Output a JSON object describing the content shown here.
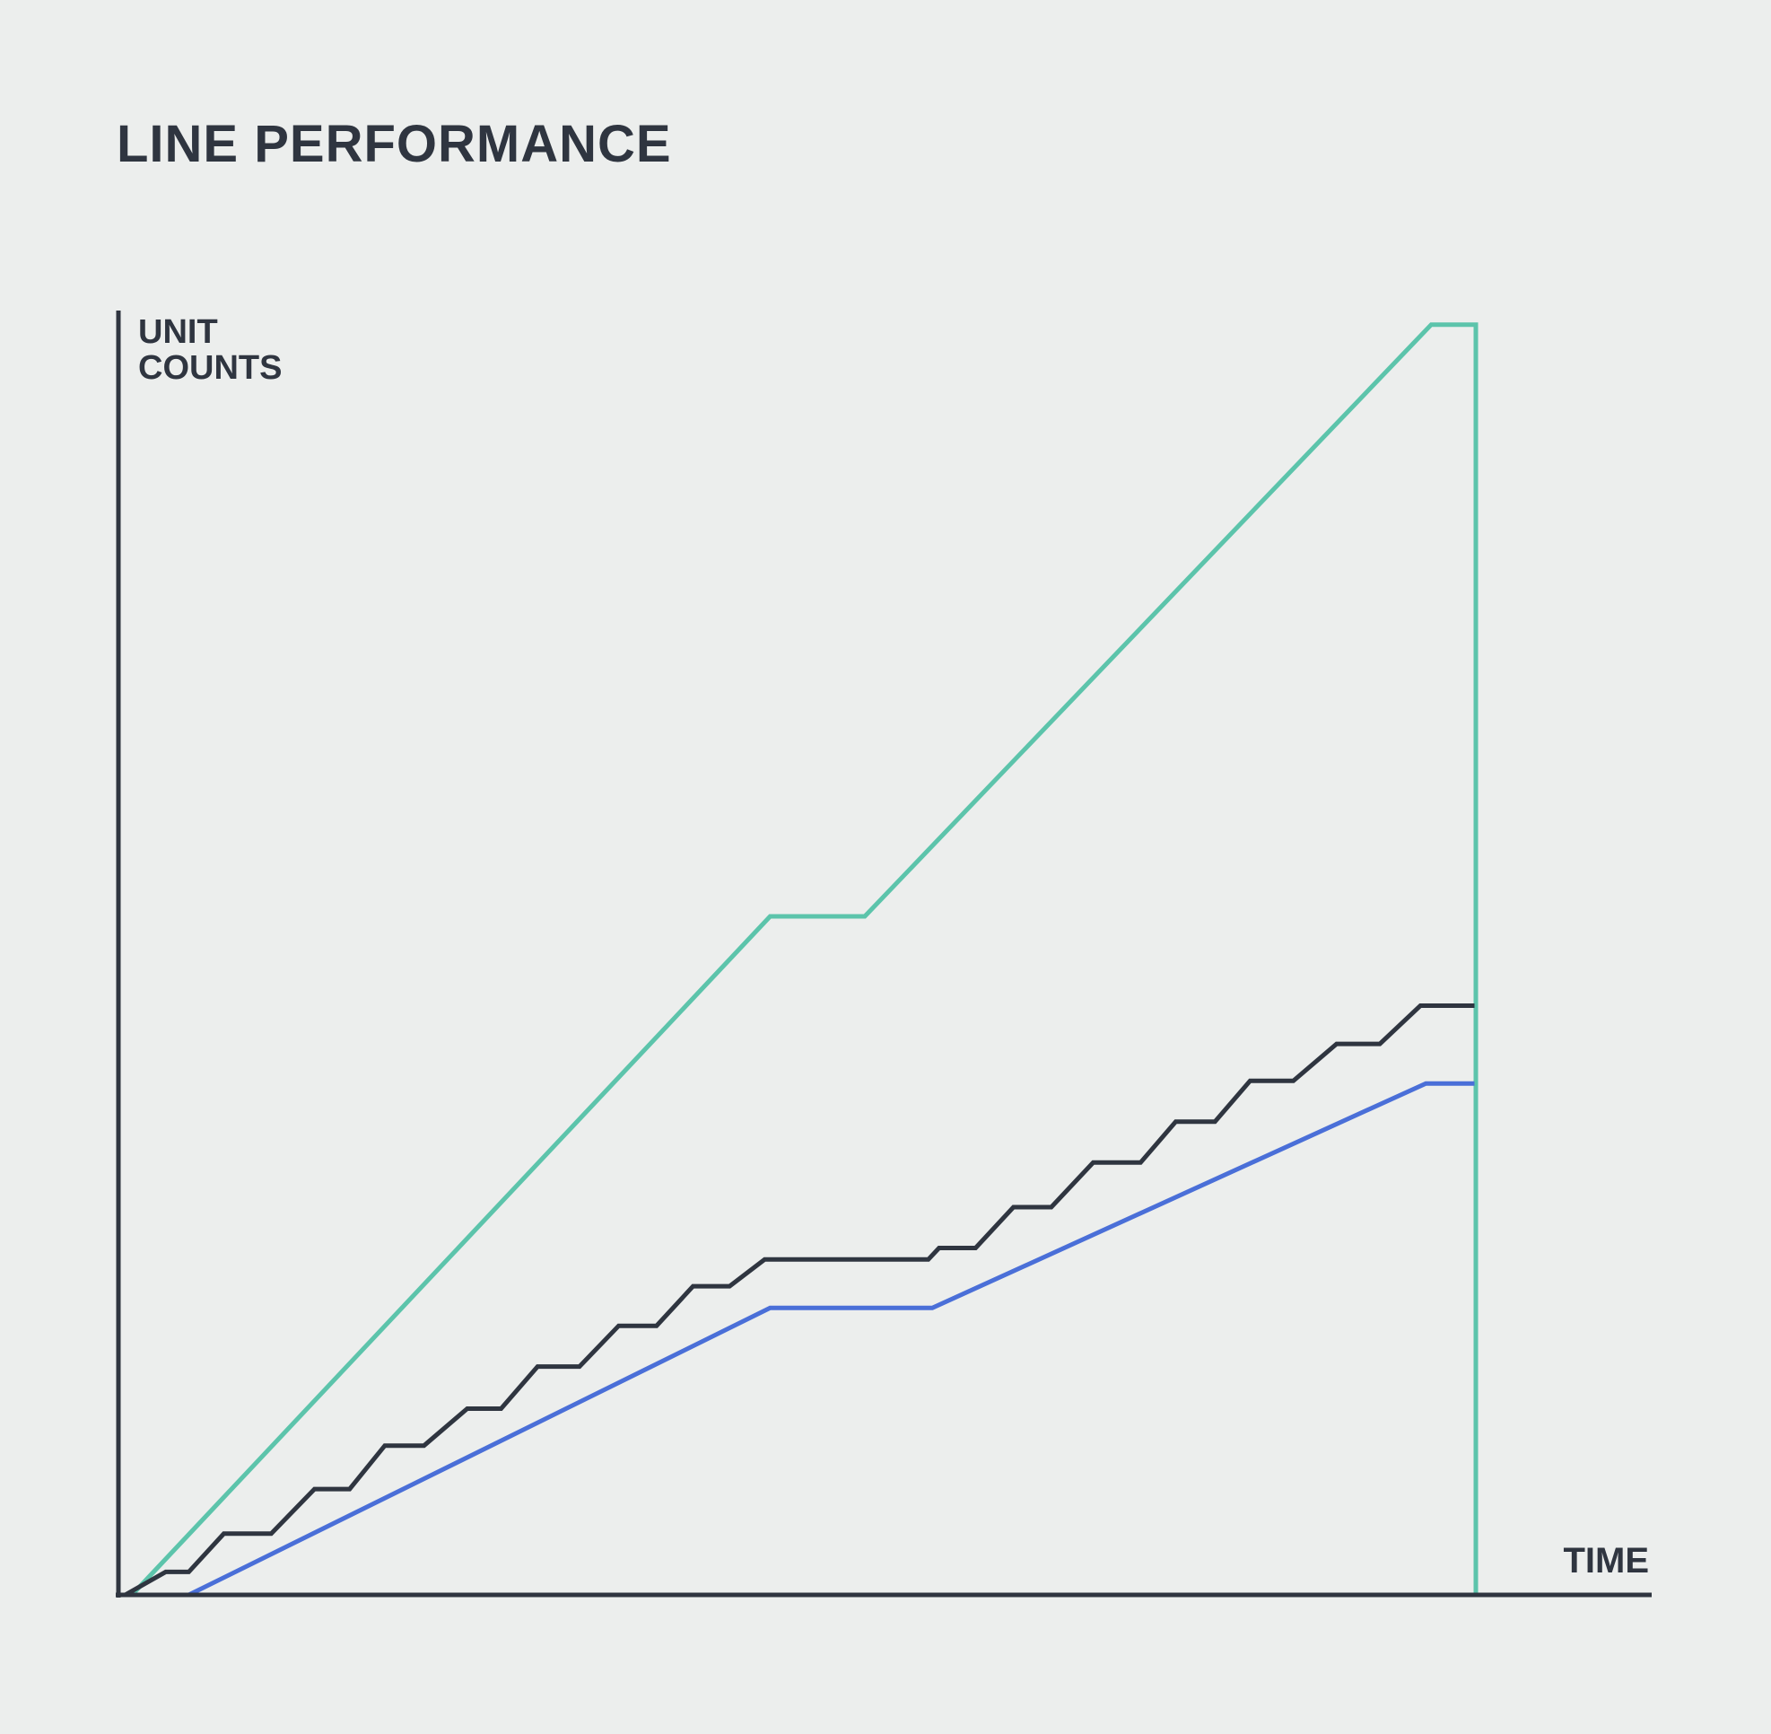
{
  "chart_data": {
    "type": "line",
    "title": "LINE PERFORMANCE",
    "xlabel": "TIME",
    "ylabel_lines": [
      "UNIT",
      "COUNTS"
    ],
    "xlim": [
      0,
      100
    ],
    "ylim": [
      0,
      100
    ],
    "grid": false,
    "legend": "none",
    "series": [
      {
        "color": "#5cc4ab",
        "points": [
          [
            1,
            0
          ],
          [
            48.2,
            53.2
          ],
          [
            55.2,
            53.2
          ],
          [
            97.1,
            99.6
          ],
          [
            100.4,
            99.6
          ],
          [
            100.4,
            0
          ]
        ]
      },
      {
        "color": "#2f3540",
        "points": [
          [
            0.5,
            0
          ],
          [
            3.5,
            1.8
          ],
          [
            5.2,
            1.8
          ],
          [
            7.8,
            4.8
          ],
          [
            11.3,
            4.8
          ],
          [
            14.5,
            8.3
          ],
          [
            17.1,
            8.3
          ],
          [
            19.7,
            11.7
          ],
          [
            22.6,
            11.7
          ],
          [
            25.8,
            14.6
          ],
          [
            28.3,
            14.6
          ],
          [
            31,
            17.9
          ],
          [
            34.1,
            17.9
          ],
          [
            37,
            21.1
          ],
          [
            39.8,
            21.1
          ],
          [
            42.5,
            24.2
          ],
          [
            45.2,
            24.2
          ],
          [
            47.8,
            26.3
          ],
          [
            59.9,
            26.3
          ],
          [
            60.7,
            27.2
          ],
          [
            63.4,
            27.2
          ],
          [
            66.2,
            30.4
          ],
          [
            69,
            30.4
          ],
          [
            72.1,
            33.9
          ],
          [
            75.6,
            33.9
          ],
          [
            78.2,
            37.1
          ],
          [
            81.1,
            37.1
          ],
          [
            83.7,
            40.3
          ],
          [
            86.9,
            40.3
          ],
          [
            90.1,
            43.2
          ],
          [
            93.3,
            43.2
          ],
          [
            96.3,
            46.2
          ],
          [
            100.3,
            46.2
          ]
        ]
      },
      {
        "color": "#4a6fd8",
        "points": [
          [
            5.2,
            0
          ],
          [
            48.2,
            22.5
          ],
          [
            60.2,
            22.5
          ],
          [
            96.7,
            40.1
          ],
          [
            100.3,
            40.1
          ]
        ]
      }
    ]
  }
}
